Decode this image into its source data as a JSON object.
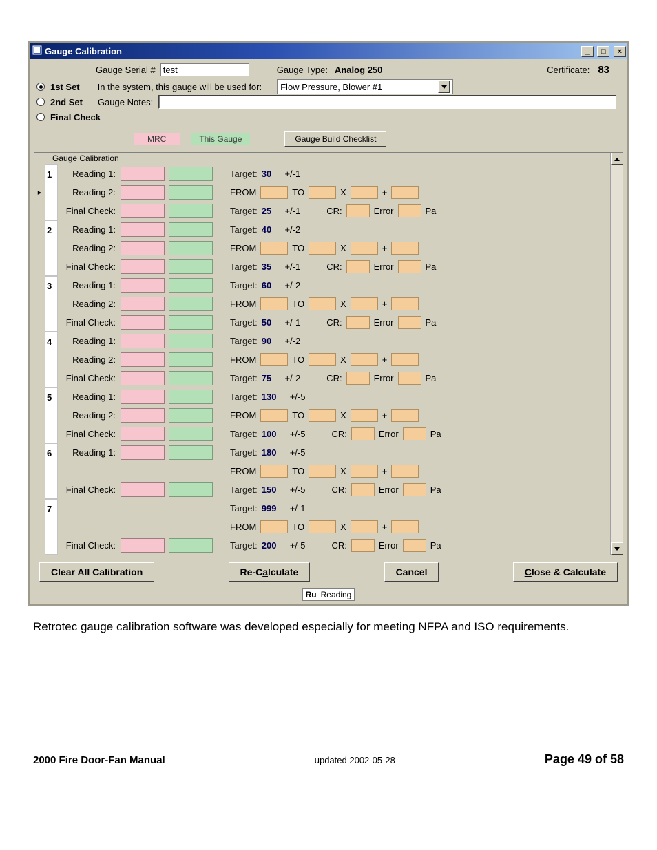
{
  "window_title": "Gauge Calibration",
  "serial_label": "Gauge Serial #",
  "serial_value": "test",
  "gauge_type_label": "Gauge Type:",
  "gauge_type_value": "Analog 250",
  "certificate_label": "Certificate:",
  "certificate_value": "83",
  "set_radios": {
    "first": "1st Set",
    "second": "2nd Set",
    "final": "Final Check",
    "selected": "first"
  },
  "used_for_label": "In the system, this gauge will be used for:",
  "used_for_value": "Flow Pressure, Blower #1",
  "notes_label": "Gauge Notes:",
  "notes_value": "",
  "mrc_label": "MRC",
  "this_gauge_label": "This Gauge",
  "build_btn": "Gauge Build Checklist",
  "section_header": "Gauge Calibration",
  "row_labels": {
    "reading1": "Reading 1:",
    "reading2": "Reading 2:",
    "final": "Final Check:"
  },
  "info_labels": {
    "target": "Target:",
    "from": "FROM",
    "to": "TO",
    "x": "X",
    "plus": "+",
    "cr": "CR:",
    "error": "Error",
    "pa": "Pa"
  },
  "rows": [
    {
      "n": "1",
      "r1_target": "30",
      "r1_tol": "+/-1",
      "fc_target": "25",
      "fc_tol": "+/-1",
      "show_r2": true
    },
    {
      "n": "2",
      "r1_target": "40",
      "r1_tol": "+/-2",
      "fc_target": "35",
      "fc_tol": "+/-1",
      "show_r2": true
    },
    {
      "n": "3",
      "r1_target": "60",
      "r1_tol": "+/-2",
      "fc_target": "50",
      "fc_tol": "+/-1",
      "show_r2": true
    },
    {
      "n": "4",
      "r1_target": "90",
      "r1_tol": "+/-2",
      "fc_target": "75",
      "fc_tol": "+/-2",
      "show_r2": true
    },
    {
      "n": "5",
      "r1_target": "130",
      "r1_tol": "+/-5",
      "fc_target": "100",
      "fc_tol": "+/-5",
      "show_r2": true
    },
    {
      "n": "6",
      "r1_target": "180",
      "r1_tol": "+/-5",
      "fc_target": "150",
      "fc_tol": "+/-5",
      "show_r2": false
    },
    {
      "n": "7",
      "r1_target": "999",
      "r1_tol": "+/-1",
      "fc_target": "200",
      "fc_tol": "+/-5",
      "show_r2": false
    }
  ],
  "buttons": {
    "clear": "Clear All Calibration",
    "recalc": "Re-Calculate",
    "accel_recalc": "a",
    "cancel": "Cancel",
    "close": "Close & Calculate",
    "accel_close": "C"
  },
  "status_abbr": "Ru",
  "status_text": "Reading",
  "colors": {
    "pink": "#f6c5ce",
    "green": "#b4e0b8",
    "orange": "#f4cd9a",
    "win_bg": "#d4d0c0"
  },
  "doc_text": "Retrotec gauge calibration software was developed especially for meeting NFPA and ISO requirements.",
  "footer": {
    "left": "2000 Fire Door-Fan Manual",
    "mid": "updated 2002-05-28",
    "right": "Page 49 of 58"
  }
}
